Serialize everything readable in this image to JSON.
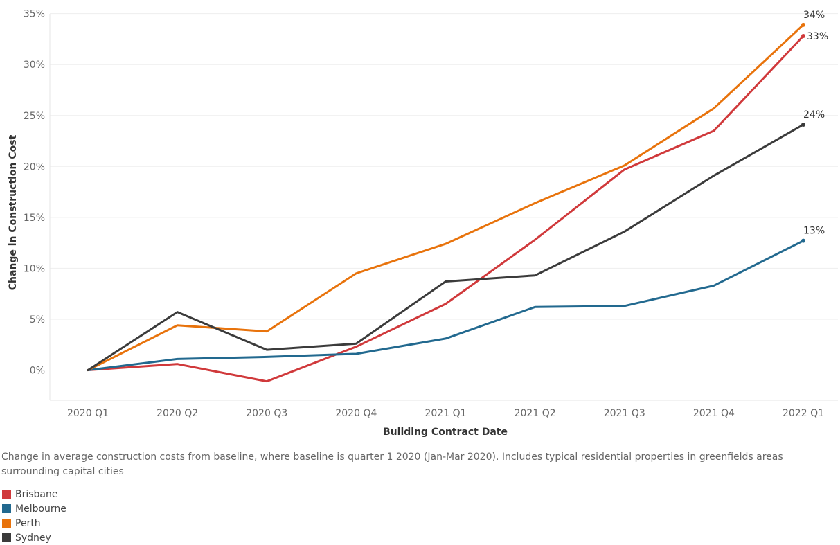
{
  "chart_data": {
    "type": "line",
    "title": "",
    "xlabel": "Building Contract Date",
    "ylabel": "Change in Construction Cost",
    "categories": [
      "2020 Q1",
      "2020 Q2",
      "2020 Q3",
      "2020 Q4",
      "2021 Q1",
      "2021 Q2",
      "2021 Q3",
      "2021 Q4",
      "2022 Q1"
    ],
    "y_ticks": [
      "0%",
      "5%",
      "10%",
      "15%",
      "20%",
      "25%",
      "30%",
      "35%"
    ],
    "y_tick_values": [
      0,
      5,
      10,
      15,
      20,
      25,
      30,
      35
    ],
    "ylim": [
      -3,
      35
    ],
    "grid": true,
    "legend_position": "bottom-left",
    "series": [
      {
        "name": "Brisbane",
        "color": "#d0393b",
        "values": [
          0,
          0.6,
          -1.1,
          2.3,
          6.5,
          12.8,
          19.7,
          23.5,
          32.8
        ],
        "end_label": "33%"
      },
      {
        "name": "Melbourne",
        "color": "#22698f",
        "values": [
          0,
          1.1,
          1.3,
          1.6,
          3.1,
          6.2,
          6.3,
          8.3,
          12.7
        ],
        "end_label": "13%"
      },
      {
        "name": "Perth",
        "color": "#e8730c",
        "values": [
          0,
          4.4,
          3.8,
          9.5,
          12.4,
          16.4,
          20.1,
          25.7,
          33.9
        ],
        "end_label": "34%"
      },
      {
        "name": "Sydney",
        "color": "#3b3b3b",
        "values": [
          0,
          5.7,
          2.0,
          2.6,
          8.7,
          9.3,
          13.6,
          19.1,
          24.1
        ],
        "end_label": "24%"
      }
    ]
  },
  "caption": "Change in average construction costs from baseline, where baseline is quarter 1 2020 (Jan-Mar 2020). Includes typical residential properties in greenfields areas surrounding capital cities"
}
